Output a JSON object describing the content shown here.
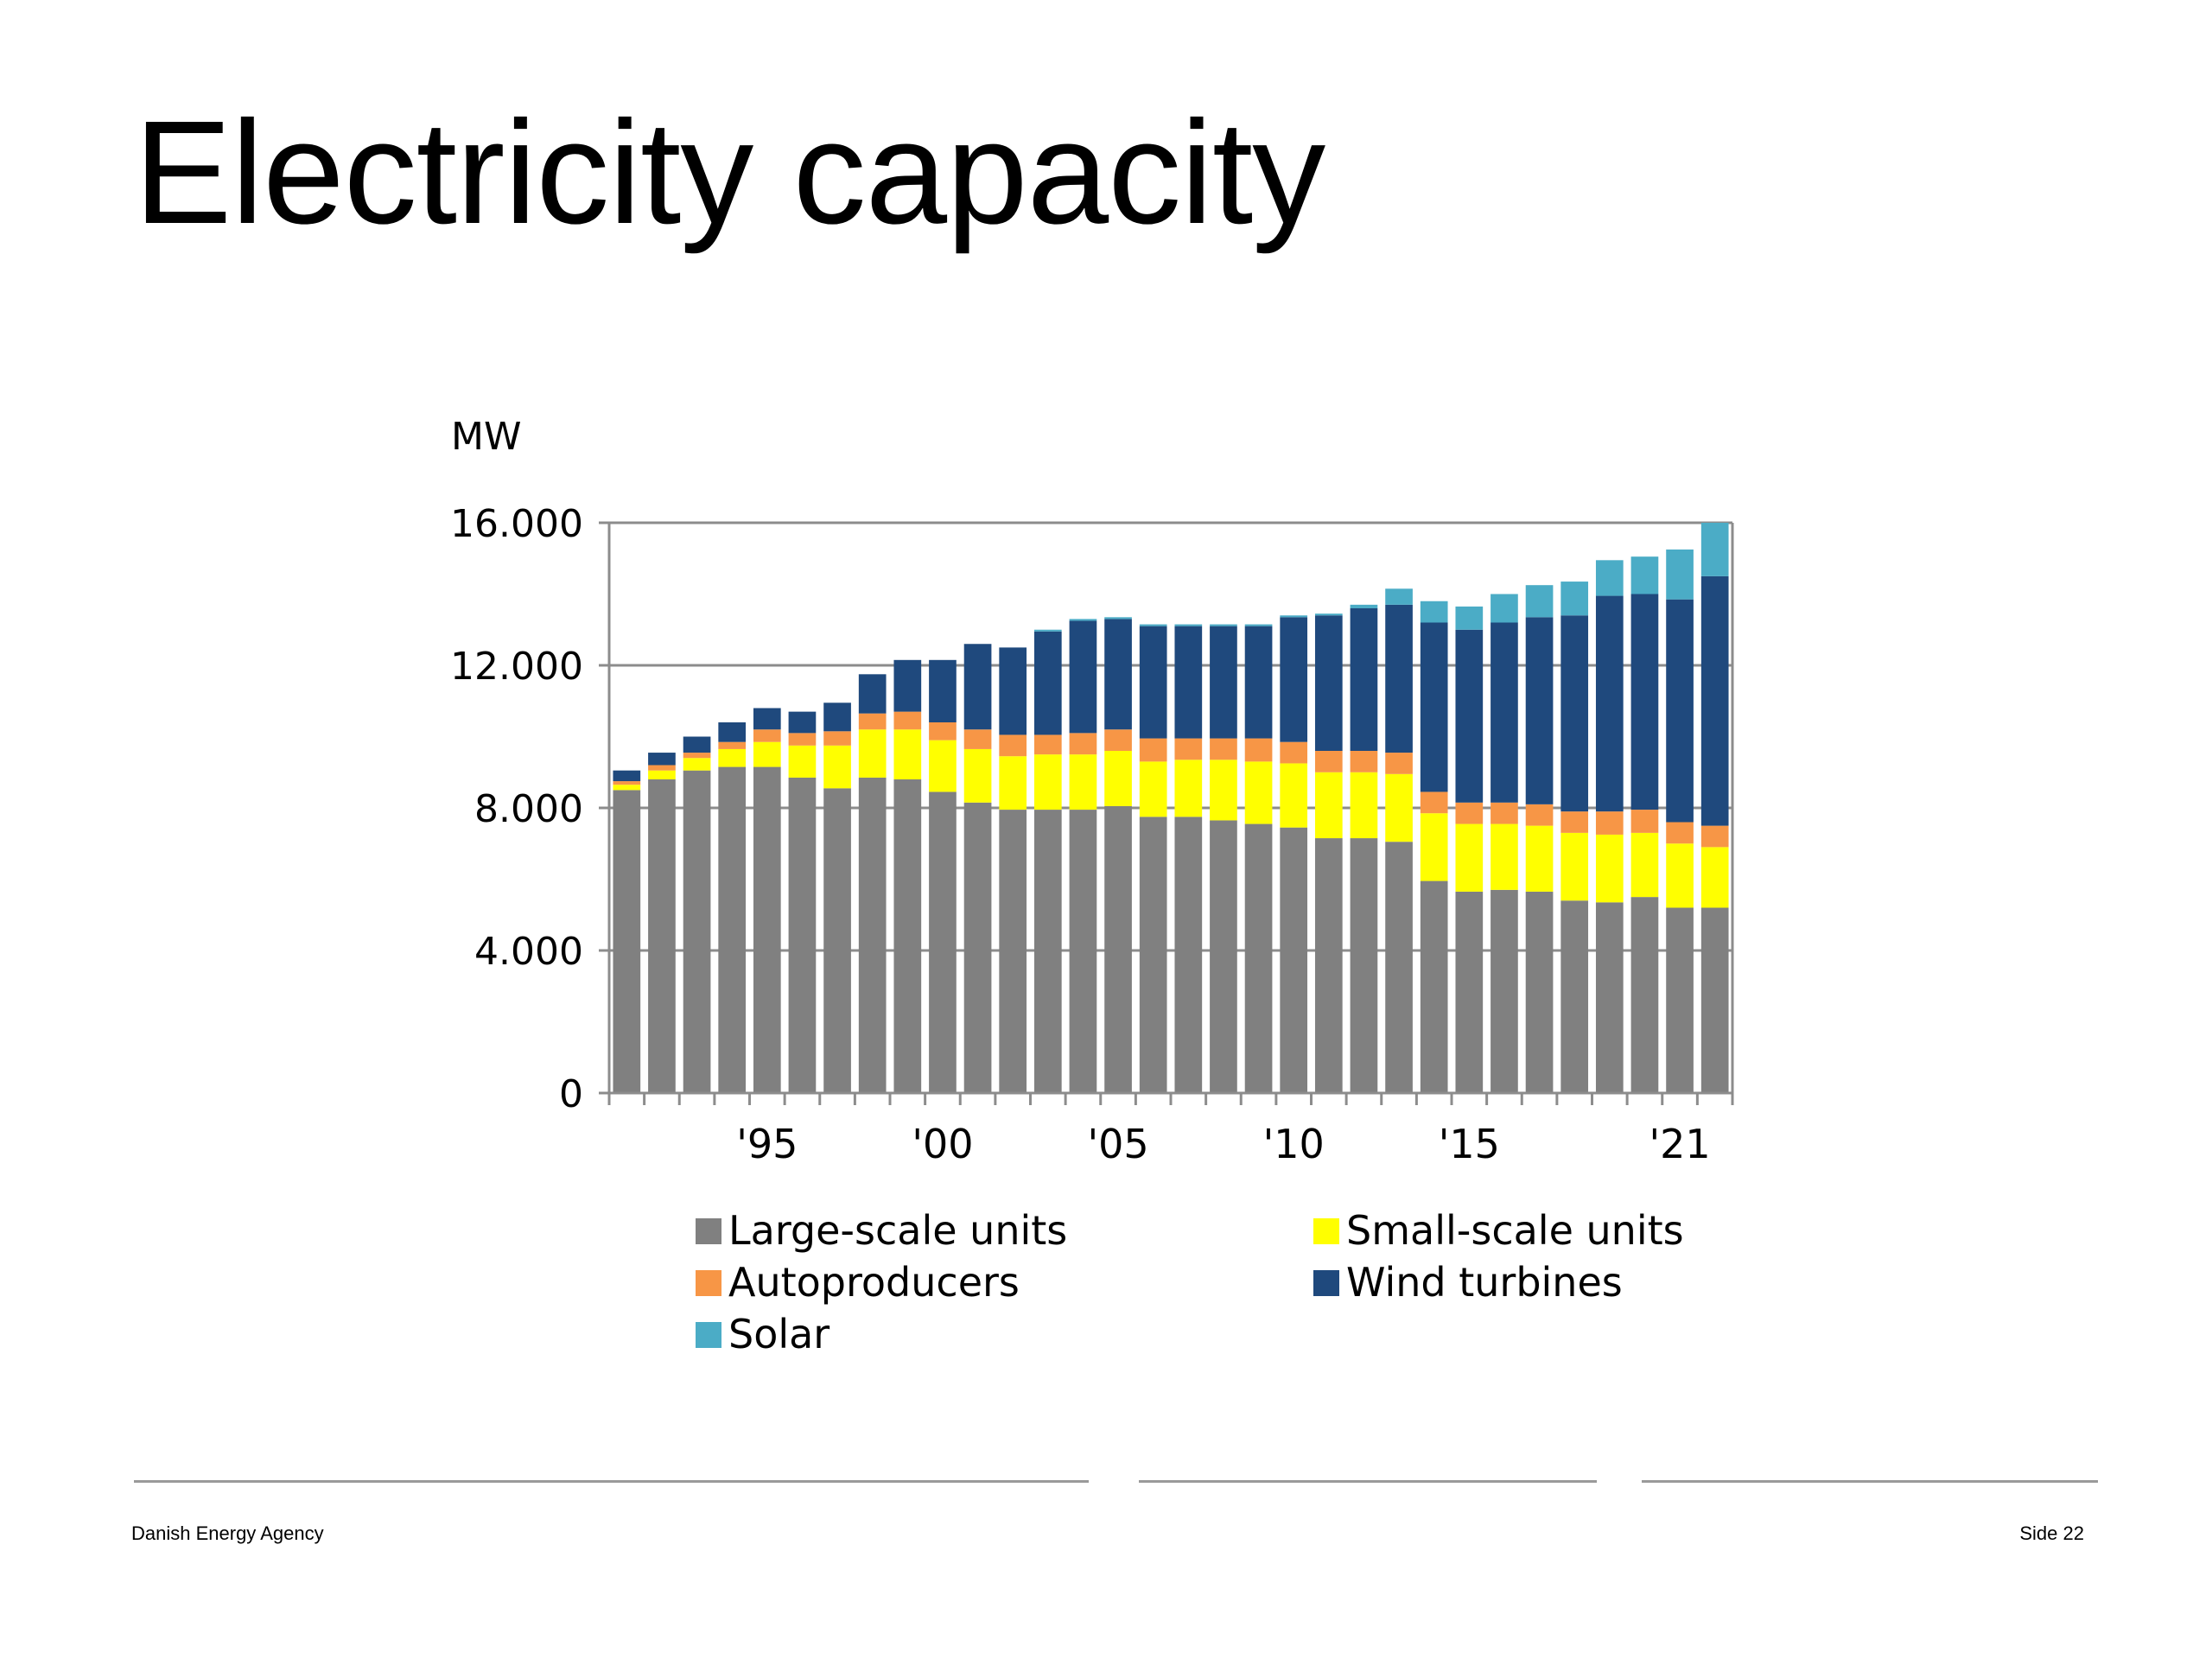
{
  "slide": {
    "title": "Electricity capacity",
    "footer_left": "Danish Energy Agency",
    "footer_right": "Side 22"
  },
  "chart_data": {
    "type": "bar",
    "stacked": true,
    "ylabel": "MW",
    "ylim": [
      0,
      16000
    ],
    "y_ticks": [
      0,
      4000,
      8000,
      12000,
      16000
    ],
    "y_tick_labels": [
      "0",
      "4.000",
      "8.000",
      "12.000",
      "16.000"
    ],
    "categories": [
      1991,
      1992,
      1993,
      1994,
      1995,
      1996,
      1997,
      1998,
      1999,
      2000,
      2001,
      2002,
      2003,
      2004,
      2005,
      2006,
      2007,
      2008,
      2009,
      2010,
      2011,
      2012,
      2013,
      2014,
      2015,
      2016,
      2017,
      2018,
      2019,
      2020,
      2021,
      2022
    ],
    "x_tick_labels": [
      {
        "category": 1995,
        "label": "'95"
      },
      {
        "category": 2000,
        "label": "'00"
      },
      {
        "category": 2005,
        "label": "'05"
      },
      {
        "category": 2010,
        "label": "'10"
      },
      {
        "category": 2015,
        "label": "'15"
      },
      {
        "category": 2021,
        "label": "'21"
      }
    ],
    "series": [
      {
        "name": "Large-scale units",
        "color": "#808080",
        "values": [
          8500,
          8800,
          9050,
          9150,
          9150,
          8850,
          8550,
          8850,
          8800,
          8450,
          8150,
          7950,
          7950,
          7950,
          8050,
          7750,
          7750,
          7650,
          7550,
          7450,
          7150,
          7150,
          7050,
          5950,
          5650,
          5700,
          5650,
          5400,
          5350,
          5500,
          5200,
          5200
        ]
      },
      {
        "name": "Small-scale units",
        "color": "#ffff00",
        "values": [
          150,
          250,
          350,
          500,
          700,
          900,
          1200,
          1350,
          1400,
          1450,
          1500,
          1500,
          1550,
          1550,
          1550,
          1550,
          1600,
          1700,
          1750,
          1800,
          1850,
          1850,
          1900,
          1900,
          1900,
          1850,
          1850,
          1900,
          1900,
          1800,
          1800,
          1700
        ]
      },
      {
        "name": "Autoproducers",
        "color": "#f79646",
        "values": [
          100,
          150,
          150,
          200,
          350,
          350,
          400,
          450,
          500,
          500,
          550,
          600,
          550,
          600,
          600,
          650,
          600,
          600,
          650,
          600,
          600,
          600,
          600,
          600,
          600,
          600,
          600,
          600,
          650,
          650,
          600,
          600
        ]
      },
      {
        "name": "Wind turbines",
        "color": "#1f497d",
        "values": [
          300,
          350,
          450,
          550,
          600,
          600,
          800,
          1100,
          1450,
          1750,
          2400,
          2450,
          2900,
          3150,
          3100,
          3150,
          3150,
          3150,
          3150,
          3500,
          3800,
          4000,
          4150,
          4750,
          4850,
          5050,
          5250,
          5500,
          6050,
          6050,
          6250,
          7000
        ]
      },
      {
        "name": "Solar",
        "color": "#4bacc6",
        "values": [
          0,
          0,
          0,
          0,
          0,
          0,
          0,
          0,
          0,
          0,
          0,
          0,
          50,
          50,
          50,
          50,
          50,
          50,
          50,
          50,
          50,
          100,
          450,
          600,
          650,
          800,
          900,
          950,
          1000,
          1050,
          1400,
          1500
        ]
      }
    ],
    "legend_position": "bottom",
    "grid": "horizontal"
  }
}
